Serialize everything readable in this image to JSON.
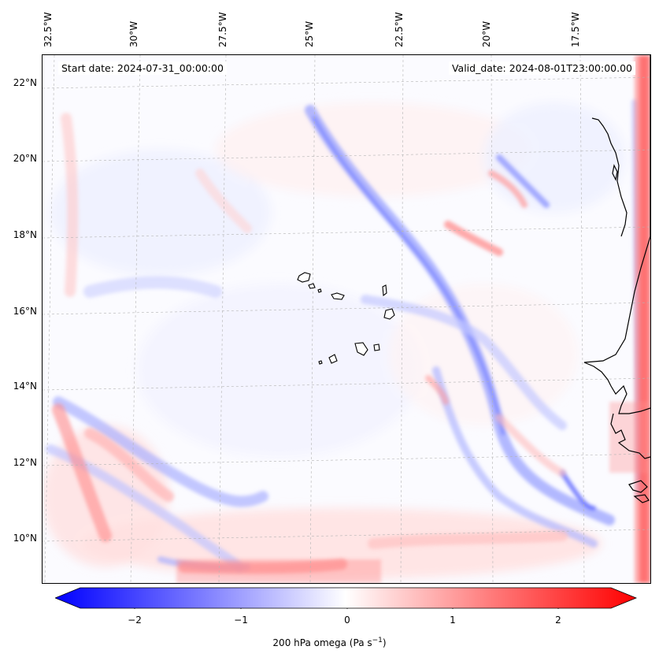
{
  "header": {
    "start_date": "Start date: 2024-07-31_00:00:00",
    "valid_date": "Valid_date: 2024-08-01T23:00:00.00"
  },
  "longitude_labels": [
    "32.5°W",
    "30°W",
    "27.5°W",
    "25°W",
    "22.5°W",
    "20°W",
    "17.5°W"
  ],
  "latitude_labels": [
    "22°N",
    "20°N",
    "18°N",
    "16°N",
    "14°N",
    "12°N",
    "10°N"
  ],
  "colorbar": {
    "ticks": [
      "−2",
      "−1",
      "0",
      "1",
      "2"
    ],
    "label": "200 hPa omega (Pa s",
    "label_sup": "−1",
    "label_end": ")",
    "min_color": "#0000ff",
    "mid_color": "#ffffff",
    "max_color": "#ff0000",
    "range": [
      -2.6,
      2.6
    ]
  },
  "colors": {
    "negative": "#6e78ff",
    "positive": "#ff6e6e",
    "coastline": "#000000",
    "gridline": "#b4b4b4"
  }
}
